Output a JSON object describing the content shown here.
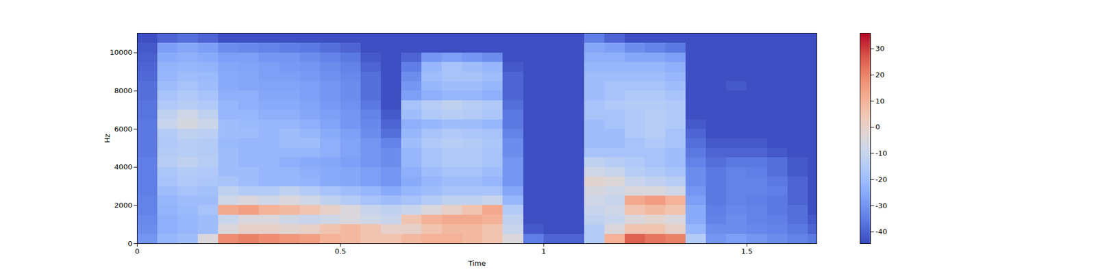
{
  "chart_data": {
    "type": "heatmap",
    "x_label": "Time",
    "y_label": "Hz",
    "xlim": [
      0,
      1.672
    ],
    "ylim": [
      0,
      11025
    ],
    "xticks": [
      0,
      0.5,
      1,
      1.5
    ],
    "yticks": [
      0,
      2000,
      4000,
      6000,
      8000,
      10000
    ],
    "x_bins": [
      0,
      0.05,
      0.1,
      0.15,
      0.2,
      0.25,
      0.3,
      0.35,
      0.4,
      0.45,
      0.5,
      0.55,
      0.6,
      0.65,
      0.7,
      0.75,
      0.8,
      0.85,
      0.9,
      0.95,
      1,
      1.05,
      1.1,
      1.15,
      1.2,
      1.25,
      1.3,
      1.35,
      1.4,
      1.45,
      1.5,
      1.55,
      1.6,
      1.65,
      1.7
    ],
    "y_bins": [
      0,
      500,
      1000,
      1500,
      2000,
      2500,
      3000,
      3500,
      4000,
      4500,
      5000,
      5500,
      6000,
      6500,
      7000,
      7500,
      8000,
      8500,
      9000,
      9500,
      10000,
      10500,
      11025
    ],
    "cells": [
      [
        -30,
        -32,
        -33,
        -34,
        -34,
        -35,
        -35,
        -35,
        -35,
        -36,
        -36,
        -36,
        -36,
        -37,
        -37,
        -38,
        -38,
        -39,
        -40,
        -41,
        -42,
        -44
      ],
      [
        -22,
        -24,
        -24,
        -23,
        -22,
        -20,
        -18,
        -17,
        -14,
        -15,
        -16,
        -15,
        -10,
        -12,
        -16,
        -18,
        -20,
        -22,
        -23,
        -25,
        -28,
        -40
      ],
      [
        -20,
        -22,
        -22,
        -21,
        -20,
        -18,
        -16,
        -15,
        -12,
        -14,
        -14,
        -12,
        -6,
        -8,
        -14,
        -16,
        -18,
        -20,
        -22,
        -24,
        -26,
        -38
      ],
      [
        -5,
        -20,
        -20,
        -18,
        -20,
        -19,
        -17,
        -16,
        -14,
        -15,
        -15,
        -13,
        -9,
        -12,
        -16,
        -18,
        -20,
        -21,
        -23,
        -25,
        -28,
        -40
      ],
      [
        18,
        -5,
        -10,
        12,
        -8,
        -12,
        -18,
        -20,
        -20,
        -20,
        -21,
        -20,
        -20,
        -22,
        -22,
        -24,
        -25,
        -25,
        -26,
        -28,
        -32,
        -44
      ],
      [
        20,
        0,
        -5,
        14,
        -5,
        -15,
        -20,
        -20,
        -22,
        -22,
        -22,
        -20,
        -21,
        -22,
        -24,
        -24,
        -26,
        -26,
        -27,
        -28,
        -33,
        -44
      ],
      [
        18,
        0,
        -5,
        10,
        -8,
        -15,
        -22,
        -22,
        -22,
        -22,
        -22,
        -22,
        -22,
        -24,
        -25,
        -26,
        -27,
        -28,
        -28,
        -30,
        -34,
        -44
      ],
      [
        16,
        -2,
        -8,
        8,
        -5,
        -12,
        -22,
        -22,
        -24,
        -22,
        -20,
        -20,
        -22,
        -24,
        -25,
        -26,
        -27,
        -28,
        -29,
        -30,
        -35,
        -44
      ],
      [
        14,
        0,
        -10,
        5,
        -8,
        -15,
        -23,
        -24,
        -25,
        -22,
        -20,
        -22,
        -24,
        -26,
        -27,
        -28,
        -28,
        -29,
        -30,
        -32,
        -36,
        -44
      ],
      [
        10,
        5,
        -8,
        0,
        -12,
        -18,
        -25,
        -25,
        -26,
        -24,
        -24,
        -25,
        -27,
        -28,
        -29,
        -30,
        -30,
        -31,
        -32,
        -34,
        -38,
        -44
      ],
      [
        8,
        8,
        -5,
        -5,
        -15,
        -20,
        -26,
        -26,
        -28,
        -27,
        -27,
        -28,
        -30,
        -30,
        -31,
        -32,
        -32,
        -33,
        -34,
        -36,
        -40,
        -44
      ],
      [
        5,
        5,
        -8,
        -10,
        -18,
        -22,
        -28,
        -28,
        -30,
        -30,
        -30,
        -32,
        -33,
        -34,
        -36,
        -38,
        -38,
        -38,
        -40,
        -42,
        -44,
        -44
      ],
      [
        5,
        0,
        -10,
        -12,
        -20,
        -25,
        -30,
        -30,
        -32,
        -32,
        -34,
        -38,
        -40,
        -42,
        -44,
        -44,
        -44,
        -44,
        -44,
        -44,
        -44,
        -44
      ],
      [
        8,
        0,
        5,
        -10,
        -18,
        -22,
        -25,
        -24,
        -22,
        -22,
        -20,
        -22,
        -24,
        -20,
        -18,
        -28,
        -30,
        -32,
        -35,
        -40,
        -44,
        -44
      ],
      [
        10,
        5,
        10,
        -5,
        -15,
        -20,
        -22,
        -20,
        -18,
        -18,
        -16,
        -18,
        -22,
        -16,
        -14,
        -24,
        -22,
        -20,
        -22,
        -30,
        -44,
        -44
      ],
      [
        10,
        8,
        12,
        0,
        -12,
        -18,
        -20,
        -18,
        -16,
        -16,
        -14,
        -16,
        -20,
        -14,
        -12,
        -22,
        -20,
        -18,
        -18,
        -28,
        -44,
        -44
      ],
      [
        8,
        8,
        12,
        5,
        -12,
        -18,
        -20,
        -18,
        -16,
        -16,
        -15,
        -17,
        -20,
        -15,
        -14,
        -22,
        -20,
        -18,
        -20,
        -30,
        -44,
        -44
      ],
      [
        5,
        5,
        10,
        12,
        -10,
        -18,
        -22,
        -20,
        -18,
        -18,
        -17,
        -18,
        -22,
        -17,
        -16,
        -24,
        -22,
        -20,
        -22,
        -32,
        -44,
        -44
      ],
      [
        -5,
        -10,
        -12,
        -15,
        -22,
        -26,
        -30,
        -30,
        -30,
        -32,
        -32,
        -34,
        -36,
        -36,
        -38,
        -40,
        -40,
        -40,
        -42,
        -44,
        -44,
        -44
      ],
      [
        -35,
        -42,
        -44,
        -44,
        -44,
        -44,
        -44,
        -44,
        -44,
        -44,
        -44,
        -44,
        -44,
        -44,
        -44,
        -44,
        -44,
        -44,
        -44,
        -44,
        -44,
        -44
      ],
      [
        -40,
        -44,
        -44,
        -44,
        -44,
        -44,
        -44,
        -44,
        -44,
        -44,
        -44,
        -44,
        -44,
        -44,
        -44,
        -44,
        -44,
        -44,
        -44,
        -44,
        -44,
        -44
      ],
      [
        -40,
        -44,
        -44,
        -44,
        -44,
        -44,
        -44,
        -44,
        -44,
        -44,
        -44,
        -44,
        -44,
        -44,
        -44,
        -44,
        -44,
        -44,
        -44,
        -44,
        -44,
        -44
      ],
      [
        -15,
        -15,
        -12,
        -10,
        -8,
        -6,
        -2,
        -8,
        -12,
        -18,
        -20,
        -20,
        -20,
        -18,
        -18,
        -20,
        -20,
        -20,
        -22,
        -24,
        -26,
        -35
      ],
      [
        10,
        -5,
        -10,
        -8,
        -10,
        -8,
        -4,
        -10,
        -14,
        -18,
        -20,
        -20,
        -18,
        -18,
        -16,
        -18,
        -18,
        -20,
        -22,
        -24,
        -28,
        -40
      ],
      [
        25,
        5,
        -5,
        5,
        12,
        -5,
        -10,
        -14,
        -16,
        -18,
        -18,
        -16,
        -16,
        -16,
        -15,
        -16,
        -18,
        -20,
        -22,
        -26,
        -32,
        -44
      ],
      [
        22,
        5,
        -2,
        8,
        15,
        -5,
        -12,
        -16,
        -18,
        -18,
        -16,
        -14,
        -14,
        -14,
        -15,
        -16,
        -18,
        -20,
        -22,
        -26,
        -34,
        -44
      ],
      [
        20,
        0,
        -5,
        5,
        10,
        -8,
        -14,
        -18,
        -20,
        -20,
        -18,
        -18,
        -16,
        -16,
        -16,
        -18,
        -20,
        -22,
        -24,
        -28,
        -36,
        -44
      ],
      [
        -15,
        -22,
        -25,
        -25,
        -28,
        -30,
        -32,
        -32,
        -34,
        -36,
        -38,
        -40,
        -42,
        -44,
        -44,
        -44,
        -44,
        -44,
        -44,
        -44,
        -44,
        -44
      ],
      [
        -30,
        -32,
        -34,
        -35,
        -36,
        -36,
        -36,
        -36,
        -38,
        -40,
        -42,
        -44,
        -44,
        -44,
        -44,
        -44,
        -44,
        -44,
        -44,
        -44,
        -44,
        -44
      ],
      [
        -28,
        -32,
        -32,
        -33,
        -34,
        -34,
        -34,
        -34,
        -36,
        -40,
        -42,
        -44,
        -44,
        -44,
        -44,
        -44,
        -42,
        -44,
        -44,
        -44,
        -44,
        -44
      ],
      [
        -30,
        -33,
        -34,
        -34,
        -35,
        -34,
        -34,
        -35,
        -36,
        -40,
        -42,
        -44,
        -44,
        -44,
        -44,
        -44,
        -44,
        -44,
        -44,
        -44,
        -44,
        -44
      ],
      [
        -32,
        -34,
        -35,
        -36,
        -36,
        -35,
        -36,
        -38,
        -38,
        -42,
        -44,
        -44,
        -44,
        -44,
        -44,
        -44,
        -44,
        -44,
        -44,
        -44,
        -44,
        -44
      ],
      [
        -34,
        -36,
        -38,
        -38,
        -40,
        -40,
        -40,
        -42,
        -42,
        -44,
        -44,
        -44,
        -44,
        -44,
        -44,
        -44,
        -44,
        -44,
        -44,
        -44,
        -44,
        -44
      ],
      [
        -36,
        -40,
        -42,
        -44,
        -44,
        -44,
        -44,
        -44,
        -44,
        -44,
        -44,
        -44,
        -44,
        -44,
        -44,
        -44,
        -44,
        -44,
        -44,
        -44,
        -44,
        -44
      ]
    ],
    "colorbar": {
      "range": [
        -44.5,
        36
      ],
      "ticks": [
        -40,
        -30,
        -20,
        -10,
        0,
        10,
        20,
        30
      ]
    }
  }
}
